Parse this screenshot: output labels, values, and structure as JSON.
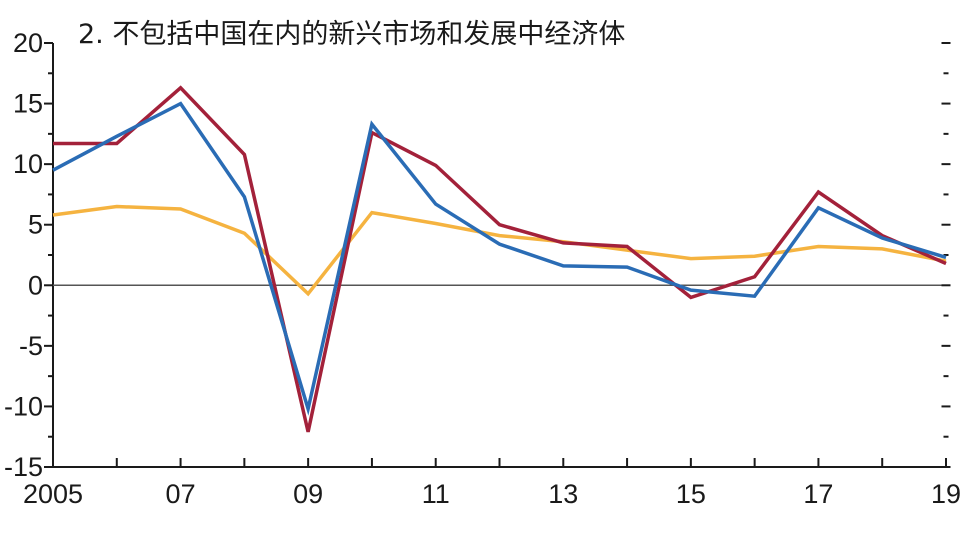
{
  "chart_data": {
    "type": "line",
    "title": "2. 不包括中国在内的新兴市场和发展中经济体",
    "xlabel": "",
    "ylabel": "",
    "x": [
      2005,
      2006,
      2007,
      2008,
      2009,
      2010,
      2011,
      2012,
      2013,
      2014,
      2015,
      2016,
      2017,
      2018,
      2019
    ],
    "x_tick_values": [
      2005,
      2007,
      2009,
      2011,
      2013,
      2015,
      2017,
      2019
    ],
    "x_tick_labels": [
      "2005",
      "07",
      "09",
      "11",
      "13",
      "15",
      "17",
      "19"
    ],
    "xlim": [
      2005,
      2019
    ],
    "ylim": [
      -15,
      20
    ],
    "y_ticks": [
      -15,
      -10,
      -5,
      0,
      5,
      10,
      15,
      20
    ],
    "y_tick_labels": [
      "-15",
      "-10",
      "-5",
      "0",
      "5",
      "10",
      "15",
      "20"
    ],
    "grid": false,
    "legend": "none",
    "series": [
      {
        "color": "#f5b340",
        "values": [
          5.8,
          6.5,
          6.3,
          4.3,
          -0.7,
          6.0,
          5.1,
          4.1,
          3.6,
          2.9,
          2.2,
          2.4,
          3.2,
          3.0,
          2.0
        ]
      },
      {
        "color": "#a3213a",
        "values": [
          11.7,
          11.7,
          16.3,
          10.8,
          -12.1,
          12.6,
          9.9,
          5.0,
          3.5,
          3.2,
          -1.0,
          0.7,
          7.7,
          4.1,
          1.8
        ]
      },
      {
        "color": "#2a6cb5",
        "values": [
          9.5,
          12.3,
          15.0,
          7.3,
          -10.2,
          13.3,
          6.7,
          3.4,
          1.6,
          1.5,
          -0.4,
          -0.9,
          6.4,
          3.9,
          2.3
        ]
      }
    ]
  }
}
